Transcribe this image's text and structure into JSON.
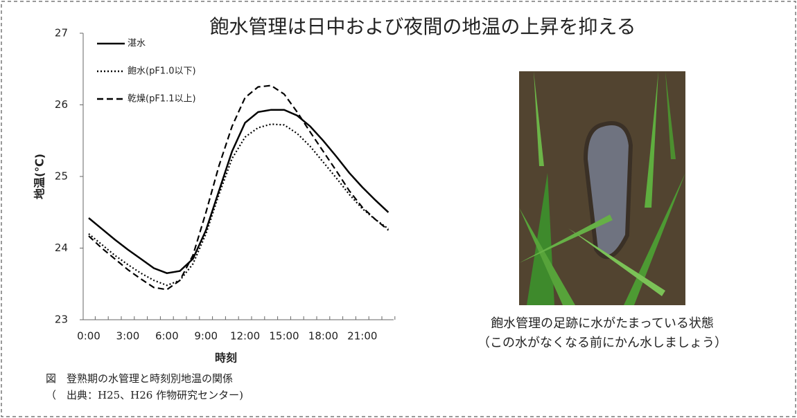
{
  "chart_data": {
    "type": "line",
    "title": "飽水管理は日中および夜間の地温の上昇を抑える",
    "categories": [
      "0:00",
      null,
      null,
      "3:00",
      null,
      null,
      "6:00",
      null,
      null,
      "9:00",
      null,
      null,
      "12:00",
      null,
      null,
      "15:00",
      null,
      null,
      "18:00",
      null,
      null,
      "21:00",
      null,
      null
    ],
    "series": [
      {
        "name": "湛水",
        "color": "#000000",
        "dash": "solid",
        "values": [
          24.42,
          24.27,
          24.12,
          23.98,
          23.85,
          23.72,
          23.65,
          23.68,
          23.85,
          24.25,
          24.8,
          25.35,
          25.75,
          25.9,
          25.93,
          25.93,
          25.85,
          25.7,
          25.5,
          25.28,
          25.05,
          24.85,
          24.67,
          24.5
        ]
      },
      {
        "name": "飽水(pF1.0以下)",
        "color": "#000000",
        "dash": "dotted",
        "values": [
          24.2,
          24.05,
          23.9,
          23.77,
          23.65,
          23.55,
          23.48,
          23.55,
          23.78,
          24.2,
          24.75,
          25.25,
          25.55,
          25.68,
          25.73,
          25.72,
          25.6,
          25.42,
          25.2,
          24.98,
          24.75,
          24.55,
          24.4,
          24.27
        ]
      },
      {
        "name": "乾燥(pF1.1以上)",
        "color": "#000000",
        "dash": "dashed",
        "values": [
          24.17,
          24.0,
          23.85,
          23.7,
          23.57,
          23.45,
          23.42,
          23.55,
          23.9,
          24.5,
          25.15,
          25.7,
          26.1,
          26.25,
          26.27,
          26.15,
          25.9,
          25.62,
          25.35,
          25.08,
          24.8,
          24.57,
          24.4,
          24.25
        ]
      }
    ],
    "x_label": "時刻",
    "y_label": "地温(℃)",
    "ylim": [
      23,
      27
    ],
    "yticks": [
      23,
      24,
      25,
      26,
      27
    ],
    "legend": "upper left"
  },
  "figure_caption": [
    "図　登熟期の水管理と時刻別地温の関係",
    "（　出典：H25、H26 作物研究センター)"
  ],
  "photo_caption": [
    "飽水管理の足跡に水がたまっている状態",
    "（この水がなくなる前にかん水しましょう）"
  ]
}
